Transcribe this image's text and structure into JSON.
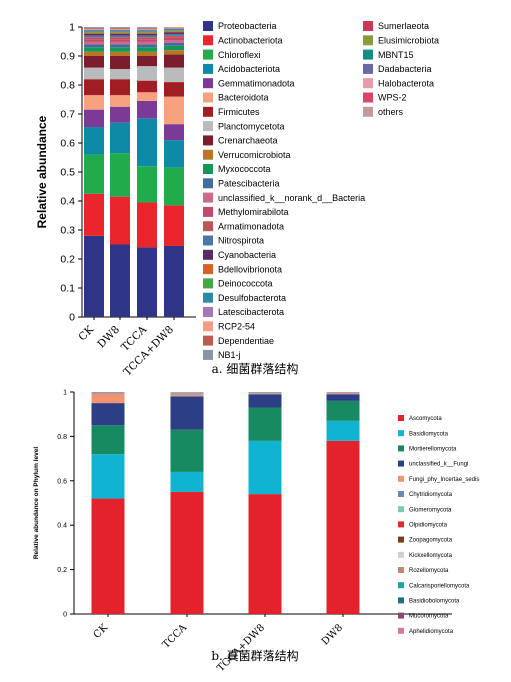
{
  "chart_data": [
    {
      "type": "bar",
      "stacked": true,
      "ylabel": "Relative abundance",
      "ylim": [
        0,
        1
      ],
      "yticks": [
        "0",
        "0.1",
        "0.2",
        "0.3",
        "0.4",
        "0.5",
        "0.6",
        "0.7",
        "0.8",
        "0.9",
        "1"
      ],
      "categories": [
        "CK",
        "DW8",
        "TCCA",
        "TCCA+DW8"
      ],
      "caption": "a. 细菌群落结构",
      "legend_position": "right",
      "series": [
        {
          "name": "Proteobacteria",
          "color": "#2e3486",
          "values": [
            0.28,
            0.25,
            0.24,
            0.245
          ]
        },
        {
          "name": "Actinobacteriota",
          "color": "#e8262b",
          "values": [
            0.145,
            0.165,
            0.155,
            0.14
          ]
        },
        {
          "name": "Chloroflexi",
          "color": "#22ab4a",
          "values": [
            0.135,
            0.15,
            0.125,
            0.13
          ]
        },
        {
          "name": "Acidobacteriota",
          "color": "#0f8aa6",
          "values": [
            0.095,
            0.105,
            0.165,
            0.095
          ]
        },
        {
          "name": "Gemmatimonadota",
          "color": "#7b3a97",
          "values": [
            0.06,
            0.055,
            0.06,
            0.055
          ]
        },
        {
          "name": "Bacteroidota",
          "color": "#f6a27f",
          "values": [
            0.05,
            0.04,
            0.03,
            0.095
          ]
        },
        {
          "name": "Firmicutes",
          "color": "#a11d24",
          "values": [
            0.055,
            0.055,
            0.04,
            0.05
          ]
        },
        {
          "name": "Planctomycetota",
          "color": "#b9bbbd",
          "values": [
            0.04,
            0.035,
            0.05,
            0.05
          ]
        },
        {
          "name": "Crenarchaeota",
          "color": "#7c1d2e",
          "values": [
            0.04,
            0.045,
            0.035,
            0.045
          ]
        },
        {
          "name": "Verrucomicrobiota",
          "color": "#b77625",
          "values": [
            0.015,
            0.015,
            0.015,
            0.015
          ]
        },
        {
          "name": "Myxococcota",
          "color": "#13985a",
          "values": [
            0.015,
            0.015,
            0.015,
            0.015
          ]
        },
        {
          "name": "Patescibacteria",
          "color": "#3f6d9e",
          "values": [
            0.01,
            0.01,
            0.01,
            0.01
          ]
        },
        {
          "name": "unclassified_k__norank_d__Bacteria",
          "color": "#cb6a8a",
          "values": [
            0.01,
            0.01,
            0.01,
            0.01
          ]
        },
        {
          "name": "Methylomirabilota",
          "color": "#c14a6b",
          "values": [
            0.008,
            0.008,
            0.008,
            0.008
          ]
        },
        {
          "name": "Armatimonadota",
          "color": "#bd5656",
          "values": [
            0.007,
            0.007,
            0.007,
            0.007
          ]
        },
        {
          "name": "Nitrospirota",
          "color": "#4b77a9",
          "values": [
            0.006,
            0.006,
            0.006,
            0.006
          ]
        },
        {
          "name": "Cyanobacteria",
          "color": "#5a2b67",
          "values": [
            0.005,
            0.005,
            0.005,
            0.005
          ]
        },
        {
          "name": "Bdellovibrionota",
          "color": "#d95f24",
          "values": [
            0.004,
            0.004,
            0.004,
            0.004
          ]
        },
        {
          "name": "Deinococcota",
          "color": "#43a64a",
          "values": [
            0.004,
            0.004,
            0.004,
            0.004
          ]
        },
        {
          "name": "Desulfobacterota",
          "color": "#2d8aa7",
          "values": [
            0.004,
            0.004,
            0.004,
            0.004
          ]
        },
        {
          "name": "Latescibacterota",
          "color": "#a874b8",
          "values": [
            0.003,
            0.003,
            0.003,
            0.003
          ]
        },
        {
          "name": "RCP2-54",
          "color": "#f49a86",
          "values": [
            0.003,
            0.003,
            0.003,
            0.003
          ]
        },
        {
          "name": "Dependentiae",
          "color": "#bf5a52",
          "values": [
            0.003,
            0.003,
            0.003,
            0.003
          ]
        },
        {
          "name": "NB1-j",
          "color": "#8b95a8",
          "values": [
            0.003,
            0.003,
            0.003,
            0.003
          ]
        },
        {
          "name": "Sumerlaeota",
          "color": "#c9395a",
          "values": [
            0.002,
            0.002,
            0.002,
            0.002
          ]
        },
        {
          "name": "Elusimicrobiota",
          "color": "#8a9a3a",
          "values": [
            0.002,
            0.002,
            0.002,
            0.002
          ]
        },
        {
          "name": "MBNT15",
          "color": "#138a86",
          "values": [
            0.002,
            0.002,
            0.002,
            0.002
          ]
        },
        {
          "name": "Dadabacteria",
          "color": "#6c68a6",
          "values": [
            0.002,
            0.002,
            0.002,
            0.002
          ]
        },
        {
          "name": "Halobacterota",
          "color": "#e89aa6",
          "values": [
            0.002,
            0.002,
            0.002,
            0.002
          ]
        },
        {
          "name": "WPS-2",
          "color": "#d8466a",
          "values": [
            0.002,
            0.002,
            0.002,
            0.002
          ]
        },
        {
          "name": "others",
          "color": "#c49a9a",
          "values": [
            0.025,
            0.025,
            0.025,
            0.025
          ]
        }
      ]
    },
    {
      "type": "bar",
      "stacked": true,
      "ylabel": "Relative abundance on Phylum level",
      "ylim": [
        0,
        1
      ],
      "yticks": [
        "0",
        "0.2",
        "0.4",
        "0.6",
        "0.8",
        "1"
      ],
      "categories": [
        "CK",
        "TCCA",
        "TCCA+DW8",
        "DW8"
      ],
      "caption": "b. 真菌群落结构",
      "legend_position": "right",
      "series": [
        {
          "name": "Ascomycota",
          "color": "#e4222b",
          "values": [
            0.52,
            0.55,
            0.54,
            0.78
          ]
        },
        {
          "name": "Basidiomycota",
          "color": "#10b4d0",
          "values": [
            0.2,
            0.09,
            0.24,
            0.09
          ]
        },
        {
          "name": "Mortierellomycota",
          "color": "#178a62",
          "values": [
            0.13,
            0.19,
            0.15,
            0.09
          ]
        },
        {
          "name": "unclassified_k__Fungi",
          "color": "#2c3f86",
          "values": [
            0.1,
            0.15,
            0.06,
            0.03
          ]
        },
        {
          "name": "Fungi_phy_Incertae_sedis",
          "color": "#f4946e",
          "values": [
            0.04,
            0.005,
            0.005,
            0.003
          ]
        },
        {
          "name": "Chytridiomycota",
          "color": "#6e86b8",
          "values": [
            0.003,
            0.003,
            0.003,
            0.002
          ]
        },
        {
          "name": "Glomeromycota",
          "color": "#7fccb4",
          "values": [
            0.002,
            0.002,
            0.002,
            0.001
          ]
        },
        {
          "name": "Olpidiomycota",
          "color": "#df2b2b",
          "values": [
            0.002,
            0.002,
            0.002,
            0.001
          ]
        },
        {
          "name": "Zoopagomycota",
          "color": "#7a3a1e",
          "values": [
            0.001,
            0.001,
            0.001,
            0.001
          ]
        },
        {
          "name": "Kickxellomycota",
          "color": "#cfcfcf",
          "values": [
            0.001,
            0.001,
            0.001,
            0.001
          ]
        },
        {
          "name": "Rozellomycota",
          "color": "#c98478",
          "values": [
            0.001,
            0.001,
            0.001,
            0.001
          ]
        },
        {
          "name": "Calcarisporiellomycota",
          "color": "#1ba59c",
          "values": [
            0.001,
            0.001,
            0.001,
            0.001
          ]
        },
        {
          "name": "Basidiobolomycota",
          "color": "#1f6e7e",
          "values": [
            0.001,
            0.001,
            0.001,
            0.001
          ]
        },
        {
          "name": "Mucoromycota",
          "color": "#8a4a6c",
          "values": [
            0.001,
            0.001,
            0.001,
            0.001
          ]
        },
        {
          "name": "Aphelidiomycota",
          "color": "#d27aa0",
          "values": [
            0.001,
            0.001,
            0.001,
            0.001
          ]
        }
      ]
    }
  ]
}
